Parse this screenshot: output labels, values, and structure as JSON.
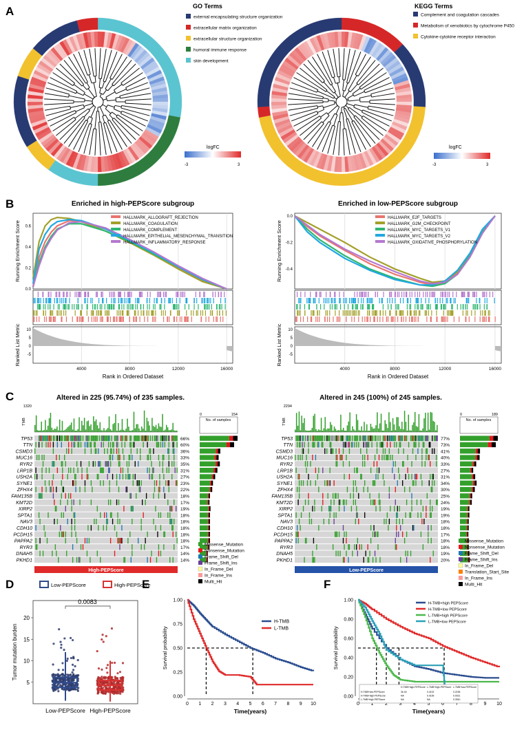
{
  "panels": {
    "A": "A",
    "B": "B",
    "C": "C",
    "D": "D",
    "E": "E",
    "F": "F"
  },
  "panel_A": {
    "go": {
      "legend_title": "GO Terms",
      "terms": [
        {
          "label": "external encapsulating structure organization",
          "color": "#283a72"
        },
        {
          "label": "extracellular matrix organization",
          "color": "#d62728"
        },
        {
          "label": "extracellular structure organization",
          "color": "#f2c12e"
        },
        {
          "label": "humoral immune response",
          "color": "#2e7d3e"
        },
        {
          "label": "skin development",
          "color": "#5bc4d1"
        }
      ],
      "logfc_title": "logFC",
      "logfc_min": "-3",
      "logfc_max": "3"
    },
    "kegg": {
      "legend_title": "KEGG Terms",
      "terms": [
        {
          "label": "Complement and coagulation cascades",
          "color": "#283a72"
        },
        {
          "label": "Metabolism of xenobiotics by cytochrome P450",
          "color": "#d62728"
        },
        {
          "label": "Cytokine-cytokine receptor interaction",
          "color": "#f2c12e"
        }
      ],
      "logfc_title": "logFC",
      "logfc_min": "-3",
      "logfc_max": "3"
    }
  },
  "chart_data": [
    {
      "id": "B-high",
      "type": "line",
      "title": "Enriched in high-PEPScore subgroup",
      "xlabel": "Rank in Ordered Dataset",
      "ylabel": "Running Enrichment Score",
      "ylabel2": "Ranked List Metric",
      "xlim": [
        0,
        16500
      ],
      "ylim": [
        0,
        0.72
      ],
      "x_ticks": [
        "4000",
        "8000",
        "12000",
        "16000"
      ],
      "y_ticks": [
        "0.0",
        "0.2",
        "0.4",
        "0.6"
      ],
      "metric_ticks": [
        "10",
        "5",
        "0",
        "-5"
      ],
      "series": [
        {
          "name": "HALLMARK_ALLOGRAFT_REJECTION",
          "color": "#e8756e",
          "x": [
            0,
            500,
            1000,
            1500,
            2000,
            3000,
            4000,
            6000,
            8000,
            10000,
            12000,
            14000,
            16000
          ],
          "y": [
            0.02,
            0.3,
            0.45,
            0.54,
            0.6,
            0.65,
            0.64,
            0.57,
            0.46,
            0.33,
            0.2,
            0.08,
            0.0
          ]
        },
        {
          "name": "HALLMARK_COAGULATION",
          "color": "#a3a02a",
          "x": [
            0,
            500,
            1000,
            1500,
            2000,
            3000,
            4000,
            6000,
            8000,
            10000,
            12000,
            14000,
            16000
          ],
          "y": [
            0.1,
            0.45,
            0.6,
            0.66,
            0.68,
            0.67,
            0.64,
            0.55,
            0.44,
            0.32,
            0.19,
            0.07,
            0.0
          ]
        },
        {
          "name": "HALLMARK_COMPLEMENT",
          "color": "#2fb673",
          "x": [
            0,
            500,
            1000,
            1500,
            2000,
            3000,
            4000,
            6000,
            8000,
            10000,
            12000,
            14000,
            16000
          ],
          "y": [
            0.02,
            0.25,
            0.4,
            0.5,
            0.57,
            0.62,
            0.62,
            0.55,
            0.45,
            0.33,
            0.21,
            0.09,
            0.0
          ]
        },
        {
          "name": "HALLMARK_EPITHELIAL_MESENCHYMAL_TRANSITION",
          "color": "#22a8e0",
          "x": [
            0,
            500,
            1000,
            1500,
            2000,
            3000,
            4000,
            6000,
            8000,
            10000,
            12000,
            14000,
            16000
          ],
          "y": [
            0.05,
            0.38,
            0.52,
            0.6,
            0.64,
            0.66,
            0.65,
            0.57,
            0.46,
            0.34,
            0.21,
            0.09,
            0.0
          ]
        },
        {
          "name": "HALLMARK_INFLAMMATORY_RESPONSE",
          "color": "#b478cf",
          "x": [
            0,
            500,
            1000,
            1500,
            2000,
            3000,
            4000,
            6000,
            8000,
            10000,
            12000,
            14000,
            16000
          ],
          "y": [
            0.02,
            0.22,
            0.38,
            0.48,
            0.56,
            0.63,
            0.64,
            0.58,
            0.47,
            0.35,
            0.22,
            0.1,
            0.0
          ]
        }
      ]
    },
    {
      "id": "B-low",
      "type": "line",
      "title": "Enriched in low-PEPScore subgroup",
      "xlabel": "Rank in Ordered Dataset",
      "ylabel": "Running Enrichment Score",
      "ylabel2": "Ranked List Metric",
      "xlim": [
        0,
        16500
      ],
      "ylim": [
        -0.55,
        0.02
      ],
      "x_ticks": [
        "4000",
        "8000",
        "12000",
        "16000"
      ],
      "y_ticks": [
        "0.0",
        "-0.2",
        "-0.4"
      ],
      "metric_ticks": [
        "10",
        "5",
        "0",
        "-5"
      ],
      "series": [
        {
          "name": "HALLMARK_E2F_TARGETS",
          "color": "#e8756e",
          "x": [
            0,
            1000,
            2000,
            4000,
            6000,
            8000,
            10000,
            11000,
            12000,
            13000,
            14000,
            15000,
            16000
          ],
          "y": [
            0.0,
            -0.08,
            -0.15,
            -0.26,
            -0.36,
            -0.44,
            -0.5,
            -0.52,
            -0.5,
            -0.43,
            -0.3,
            -0.12,
            0.0
          ]
        },
        {
          "name": "HALLMARK_G2M_CHECKPOINT",
          "color": "#a3a02a",
          "x": [
            0,
            1000,
            2000,
            4000,
            6000,
            8000,
            10000,
            11000,
            12000,
            13000,
            14000,
            15000,
            16000
          ],
          "y": [
            0.0,
            -0.05,
            -0.1,
            -0.2,
            -0.31,
            -0.4,
            -0.47,
            -0.5,
            -0.49,
            -0.42,
            -0.3,
            -0.12,
            0.0
          ]
        },
        {
          "name": "HALLMARK_MYC_TARGETS_V1",
          "color": "#2fb673",
          "x": [
            0,
            1000,
            2000,
            4000,
            6000,
            8000,
            10000,
            11000,
            12000,
            13000,
            14000,
            15000,
            16000
          ],
          "y": [
            0.0,
            -0.1,
            -0.18,
            -0.3,
            -0.4,
            -0.47,
            -0.52,
            -0.53,
            -0.51,
            -0.44,
            -0.3,
            -0.12,
            0.0
          ]
        },
        {
          "name": "HALLMARK_MYC_TARGETS_V2",
          "color": "#22a8e0",
          "x": [
            0,
            1000,
            2000,
            4000,
            6000,
            8000,
            10000,
            11000,
            12000,
            13000,
            14000,
            15000,
            16000
          ],
          "y": [
            0.0,
            -0.12,
            -0.2,
            -0.32,
            -0.41,
            -0.48,
            -0.52,
            -0.52,
            -0.49,
            -0.41,
            -0.28,
            -0.1,
            0.0
          ]
        },
        {
          "name": "HALLMARK_OXIDATIVE_PHOSPHORYLATION",
          "color": "#b478cf",
          "x": [
            0,
            1000,
            2000,
            4000,
            6000,
            8000,
            10000,
            11000,
            12000,
            13000,
            14000,
            15000,
            16000
          ],
          "y": [
            0.0,
            -0.07,
            -0.14,
            -0.25,
            -0.34,
            -0.42,
            -0.49,
            -0.51,
            -0.5,
            -0.44,
            -0.31,
            -0.13,
            0.0
          ]
        }
      ]
    },
    {
      "id": "C-high",
      "type": "heatmap",
      "title": "Altered in 225 (95.74%) of 235 samples.",
      "tmb_label": "TMB",
      "tmb_max": "1320",
      "bar_header": "No. of samples",
      "bar_min": "0",
      "bar_max": "154",
      "group_label": "High-PEPScore",
      "group_color": "#e02a2a",
      "genes": [
        "TP53",
        "TTN",
        "CSMD3",
        "MUC16",
        "RYR2",
        "LRP1B",
        "USH2A",
        "SYNE1",
        "ZFHX4",
        "FAM135B",
        "KMT2D",
        "XIRP2",
        "SPTA1",
        "NAV3",
        "CDH10",
        "PCDH15",
        "PAPPA2",
        "RYR3",
        "DNAH5",
        "PKHD1"
      ],
      "percents": [
        "66%",
        "60%",
        "36%",
        "33%",
        "35%",
        "31%",
        "27%",
        "23%",
        "22%",
        "18%",
        "17%",
        "19%",
        "18%",
        "18%",
        "18%",
        "18%",
        "18%",
        "17%",
        "14%",
        "14%"
      ],
      "counts": [
        154,
        140,
        84,
        77,
        82,
        72,
        63,
        54,
        51,
        42,
        40,
        44,
        42,
        42,
        42,
        42,
        42,
        40,
        33,
        33
      ],
      "legend": [
        {
          "label": "Missense_Mutation",
          "color": "#33a02c"
        },
        {
          "label": "Nonsense_Mutation",
          "color": "#e31a1c"
        },
        {
          "label": "Frame_Shift_Del",
          "color": "#1f78b4"
        },
        {
          "label": "Frame_Shift_Ins",
          "color": "#6a3d9a"
        },
        {
          "label": "In_Frame_Del",
          "color": "#ffff99"
        },
        {
          "label": "In_Frame_Ins",
          "color": "#fb9a99"
        },
        {
          "label": "Multi_Hit",
          "color": "#000000"
        }
      ]
    },
    {
      "id": "C-low",
      "type": "heatmap",
      "title": "Altered in 245 (100%) of 245 samples.",
      "tmb_label": "TMB",
      "tmb_max": "2294",
      "bar_header": "No. of samples",
      "bar_min": "0",
      "bar_max": "189",
      "group_label": "Low-PEPScore",
      "group_color": "#2453a8",
      "genes": [
        "TP53",
        "TTN",
        "CSMD3",
        "MUC16",
        "RYR2",
        "LRP1B",
        "USH2A",
        "SYNE1",
        "ZFHX4",
        "FAM135B",
        "KMT2D",
        "XIRP2",
        "SPTA1",
        "NAV3",
        "CDH10",
        "PCDH15",
        "PAPPA2",
        "RYR3",
        "DNAH5",
        "PKHD1"
      ],
      "percents": [
        "77%",
        "73%",
        "41%",
        "40%",
        "33%",
        "27%",
        "31%",
        "34%",
        "30%",
        "25%",
        "24%",
        "19%",
        "19%",
        "18%",
        "18%",
        "17%",
        "18%",
        "18%",
        "19%",
        "20%"
      ],
      "counts": [
        189,
        179,
        100,
        98,
        81,
        66,
        76,
        83,
        74,
        61,
        59,
        47,
        47,
        44,
        44,
        42,
        44,
        44,
        47,
        49
      ],
      "legend": [
        {
          "label": "Missense_Mutation",
          "color": "#33a02c"
        },
        {
          "label": "Nonsense_Mutation",
          "color": "#e31a1c"
        },
        {
          "label": "Frame_Shift_Del",
          "color": "#1f78b4"
        },
        {
          "label": "Frame_Shift_Ins",
          "color": "#6a3d9a"
        },
        {
          "label": "In_Frame_Del",
          "color": "#ffff99"
        },
        {
          "label": "Translation_Start_Site",
          "color": "#ff7f00"
        },
        {
          "label": "In_Frame_Ins",
          "color": "#fb9a99"
        },
        {
          "label": "Multi_Hit",
          "color": "#000000"
        }
      ]
    },
    {
      "id": "D",
      "type": "scatter",
      "ylabel": "Tumor mutation burden",
      "ylim": [
        0,
        24
      ],
      "y_ticks": [
        "5",
        "10",
        "15",
        "20"
      ],
      "categories": [
        "Low-PEPScore",
        "High-PEPScore"
      ],
      "legend": [
        {
          "name": "Low-PEPScore",
          "color": "#2f4a8a"
        },
        {
          "name": "High-PEPScore",
          "color": "#d83232"
        }
      ],
      "pvalue": "0.0083",
      "boxes": [
        {
          "name": "Low-PEPScore",
          "q1": 3.8,
          "median": 4.9,
          "q3": 6.1,
          "whisker_low": 0.7,
          "whisker_high": 12.0
        },
        {
          "name": "High-PEPScore",
          "q1": 3.2,
          "median": 4.3,
          "q3": 5.4,
          "whisker_low": 0.5,
          "whisker_high": 10.0
        }
      ]
    },
    {
      "id": "E",
      "type": "line",
      "xlabel": "Time(years)",
      "ylabel": "Survival probability",
      "xlim": [
        0,
        10
      ],
      "ylim": [
        0,
        1
      ],
      "x_ticks": [
        "0",
        "1",
        "2",
        "3",
        "4",
        "5",
        "6",
        "7",
        "8",
        "9",
        "10"
      ],
      "y_ticks": [
        "0.00",
        "0.25",
        "0.50",
        "0.75",
        "1.00"
      ],
      "series": [
        {
          "name": "H-TMB",
          "color": "#2a4d8f",
          "x": [
            0,
            0.5,
            1,
            1.5,
            2,
            3,
            4,
            5,
            6,
            7,
            8,
            9,
            10
          ],
          "y": [
            1.0,
            0.94,
            0.86,
            0.79,
            0.72,
            0.64,
            0.57,
            0.5,
            0.45,
            0.39,
            0.35,
            0.3,
            0.26
          ]
        },
        {
          "name": "L-TMB",
          "color": "#e02a2a",
          "x": [
            0,
            0.5,
            1,
            1.5,
            2,
            2.5,
            3,
            4,
            5,
            5.5,
            6,
            8,
            10
          ],
          "y": [
            1.0,
            0.8,
            0.65,
            0.5,
            0.36,
            0.26,
            0.22,
            0.22,
            0.2,
            0.12,
            0.12,
            0.12,
            0.12
          ]
        }
      ],
      "medians": [
        1.5,
        5.2
      ]
    },
    {
      "id": "F",
      "type": "line",
      "xlabel": "Time(years)",
      "ylabel": "Survival probability",
      "xlim": [
        0,
        10
      ],
      "ylim": [
        0,
        1
      ],
      "x_ticks": [
        "0",
        "1",
        "2",
        "3",
        "4",
        "5",
        "6",
        "7",
        "8",
        "9",
        "10"
      ],
      "y_ticks": [
        "0.00",
        "0.20",
        "0.40",
        "0.60",
        "0.80",
        "1.00"
      ],
      "series": [
        {
          "name": "H-TMB+high PEPScore",
          "color": "#2a4d8f",
          "x": [
            0,
            0.5,
            1,
            2,
            3,
            4,
            5,
            6,
            7,
            8,
            9,
            10
          ],
          "y": [
            1.0,
            0.85,
            0.7,
            0.5,
            0.38,
            0.31,
            0.28,
            0.24,
            0.22,
            0.2,
            0.19,
            0.19
          ]
        },
        {
          "name": "H-TMB+low PEPScore",
          "color": "#e02a2a",
          "x": [
            0,
            0.5,
            1,
            2,
            3,
            4,
            5,
            6,
            7,
            8,
            9,
            10
          ],
          "y": [
            1.0,
            0.96,
            0.9,
            0.8,
            0.72,
            0.65,
            0.6,
            0.52,
            0.46,
            0.4,
            0.35,
            0.3
          ]
        },
        {
          "name": "L-TMB+high PEPScore",
          "color": "#4cb84c",
          "x": [
            0,
            0.5,
            1,
            1.5,
            2,
            2.5,
            3,
            4,
            6,
            8,
            10
          ],
          "y": [
            1.0,
            0.82,
            0.6,
            0.45,
            0.32,
            0.22,
            0.17,
            0.15,
            0.15,
            0.15,
            0.15
          ]
        },
        {
          "name": "L-TMB+low PEPScore",
          "color": "#2aa0b8",
          "x": [
            0,
            0.5,
            1,
            1.5,
            2,
            3,
            4,
            5,
            6,
            6.2
          ],
          "y": [
            1.0,
            0.92,
            0.78,
            0.65,
            0.48,
            0.38,
            0.32,
            0.32,
            0.32,
            0.0
          ]
        }
      ],
      "medians": [
        1.3,
        2.0,
        2.9,
        6.1
      ],
      "table": {
        "columns": [
          "",
          "H-TMB+high-PEPScore",
          "L-TMB+high-PEPScore",
          "L-TMB+low-PEPScore"
        ],
        "rows": [
          [
            "H-TMB+low-PEPScore",
            "3e-04",
            "0.4102",
            "0.2196"
          ],
          [
            "H-TMB+high-PEPScore",
            "NA",
            "0.0159",
            "0.0021"
          ],
          [
            "L-TMB+high-PEPScore",
            "NA",
            "NA",
            "0.3910"
          ]
        ]
      }
    }
  ]
}
